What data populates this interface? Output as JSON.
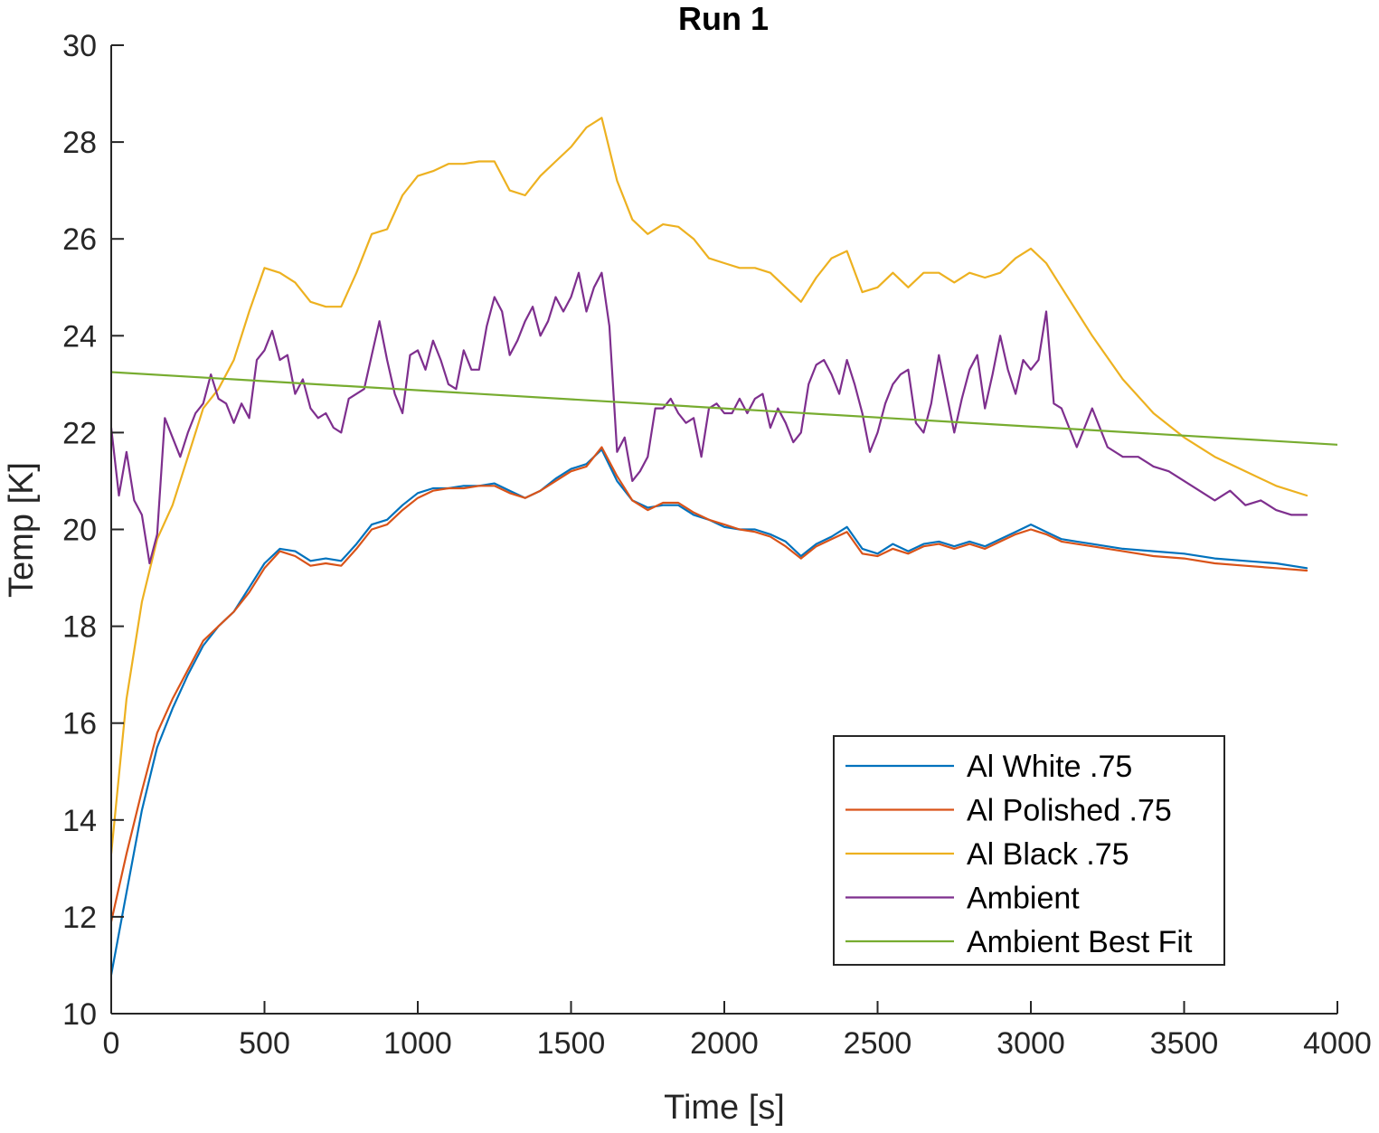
{
  "chart_data": {
    "type": "line",
    "title": "Run 1",
    "xlabel": "Time [s]",
    "ylabel": "Temp [K]",
    "xlim": [
      0,
      4000
    ],
    "ylim": [
      10,
      30
    ],
    "xticks": [
      0,
      500,
      1000,
      1500,
      2000,
      2500,
      3000,
      3500,
      4000
    ],
    "yticks": [
      10,
      12,
      14,
      16,
      18,
      20,
      22,
      24,
      26,
      28,
      30
    ],
    "grid": false,
    "legend_position": "bottom-right",
    "series": [
      {
        "name": "Al White .75",
        "color": "#0072BD",
        "x": [
          0,
          50,
          100,
          150,
          200,
          250,
          300,
          350,
          400,
          450,
          500,
          550,
          600,
          650,
          700,
          750,
          800,
          850,
          900,
          950,
          1000,
          1050,
          1100,
          1150,
          1200,
          1250,
          1300,
          1350,
          1400,
          1450,
          1500,
          1550,
          1600,
          1650,
          1700,
          1750,
          1800,
          1850,
          1900,
          1950,
          2000,
          2050,
          2100,
          2150,
          2200,
          2250,
          2300,
          2350,
          2400,
          2450,
          2500,
          2550,
          2600,
          2650,
          2700,
          2750,
          2800,
          2850,
          2900,
          2950,
          3000,
          3050,
          3100,
          3150,
          3200,
          3300,
          3400,
          3500,
          3600,
          3700,
          3800,
          3900
        ],
        "y": [
          10.8,
          12.5,
          14.2,
          15.5,
          16.3,
          17.0,
          17.6,
          18.0,
          18.3,
          18.8,
          19.3,
          19.6,
          19.55,
          19.35,
          19.4,
          19.35,
          19.7,
          20.1,
          20.2,
          20.5,
          20.75,
          20.85,
          20.85,
          20.9,
          20.9,
          20.95,
          20.8,
          20.65,
          20.8,
          21.05,
          21.25,
          21.35,
          21.65,
          21.0,
          20.6,
          20.45,
          20.5,
          20.5,
          20.3,
          20.2,
          20.05,
          20.0,
          20.0,
          19.9,
          19.75,
          19.45,
          19.7,
          19.85,
          20.05,
          19.6,
          19.5,
          19.7,
          19.55,
          19.7,
          19.75,
          19.65,
          19.75,
          19.65,
          19.8,
          19.95,
          20.1,
          19.95,
          19.8,
          19.75,
          19.7,
          19.6,
          19.55,
          19.5,
          19.4,
          19.35,
          19.3,
          19.2
        ]
      },
      {
        "name": "Al Polished .75",
        "color": "#D95319",
        "x": [
          0,
          50,
          100,
          150,
          200,
          250,
          300,
          350,
          400,
          450,
          500,
          550,
          600,
          650,
          700,
          750,
          800,
          850,
          900,
          950,
          1000,
          1050,
          1100,
          1150,
          1200,
          1250,
          1300,
          1350,
          1400,
          1450,
          1500,
          1550,
          1600,
          1650,
          1700,
          1750,
          1800,
          1850,
          1900,
          1950,
          2000,
          2050,
          2100,
          2150,
          2200,
          2250,
          2300,
          2350,
          2400,
          2450,
          2500,
          2550,
          2600,
          2650,
          2700,
          2750,
          2800,
          2850,
          2900,
          2950,
          3000,
          3050,
          3100,
          3150,
          3200,
          3300,
          3400,
          3500,
          3600,
          3700,
          3800,
          3900
        ],
        "y": [
          11.9,
          13.3,
          14.6,
          15.8,
          16.5,
          17.1,
          17.7,
          18.0,
          18.3,
          18.7,
          19.2,
          19.55,
          19.45,
          19.25,
          19.3,
          19.25,
          19.6,
          20.0,
          20.1,
          20.4,
          20.65,
          20.8,
          20.85,
          20.85,
          20.9,
          20.9,
          20.75,
          20.65,
          20.8,
          21.0,
          21.2,
          21.3,
          21.7,
          21.1,
          20.6,
          20.4,
          20.55,
          20.55,
          20.35,
          20.2,
          20.1,
          20.0,
          19.95,
          19.85,
          19.65,
          19.4,
          19.65,
          19.8,
          19.95,
          19.5,
          19.45,
          19.6,
          19.5,
          19.65,
          19.7,
          19.6,
          19.7,
          19.6,
          19.75,
          19.9,
          20.0,
          19.9,
          19.75,
          19.7,
          19.65,
          19.55,
          19.45,
          19.4,
          19.3,
          19.25,
          19.2,
          19.15
        ]
      },
      {
        "name": "Al Black .75",
        "color": "#EDB120",
        "x": [
          0,
          50,
          100,
          150,
          200,
          250,
          300,
          350,
          400,
          450,
          500,
          550,
          600,
          650,
          700,
          750,
          800,
          850,
          900,
          950,
          1000,
          1050,
          1100,
          1150,
          1200,
          1250,
          1300,
          1350,
          1400,
          1450,
          1500,
          1550,
          1600,
          1650,
          1700,
          1750,
          1800,
          1850,
          1900,
          1950,
          2000,
          2050,
          2100,
          2150,
          2200,
          2250,
          2300,
          2350,
          2400,
          2450,
          2500,
          2550,
          2600,
          2650,
          2700,
          2750,
          2800,
          2850,
          2900,
          2950,
          3000,
          3050,
          3100,
          3150,
          3200,
          3300,
          3400,
          3500,
          3600,
          3700,
          3800,
          3900
        ],
        "y": [
          13.3,
          16.5,
          18.5,
          19.8,
          20.5,
          21.5,
          22.5,
          22.9,
          23.5,
          24.5,
          25.4,
          25.3,
          25.1,
          24.7,
          24.6,
          24.6,
          25.3,
          26.1,
          26.2,
          26.9,
          27.3,
          27.4,
          27.55,
          27.55,
          27.6,
          27.6,
          27.0,
          26.9,
          27.3,
          27.6,
          27.9,
          28.3,
          28.5,
          27.2,
          26.4,
          26.1,
          26.3,
          26.25,
          26.0,
          25.6,
          25.5,
          25.4,
          25.4,
          25.3,
          25.0,
          24.7,
          25.2,
          25.6,
          25.75,
          24.9,
          25.0,
          25.3,
          25.0,
          25.3,
          25.3,
          25.1,
          25.3,
          25.2,
          25.3,
          25.6,
          25.8,
          25.5,
          25.0,
          24.5,
          24.0,
          23.1,
          22.4,
          21.9,
          21.5,
          21.2,
          20.9,
          20.7
        ]
      },
      {
        "name": "Ambient",
        "color": "#7E2F8E",
        "x": [
          0,
          25,
          50,
          75,
          100,
          125,
          150,
          175,
          200,
          225,
          250,
          275,
          300,
          325,
          350,
          375,
          400,
          425,
          450,
          475,
          500,
          525,
          550,
          575,
          600,
          625,
          650,
          675,
          700,
          725,
          750,
          775,
          800,
          825,
          850,
          875,
          900,
          925,
          950,
          975,
          1000,
          1025,
          1050,
          1075,
          1100,
          1125,
          1150,
          1175,
          1200,
          1225,
          1250,
          1275,
          1300,
          1325,
          1350,
          1375,
          1400,
          1425,
          1450,
          1475,
          1500,
          1525,
          1550,
          1575,
          1600,
          1625,
          1650,
          1675,
          1700,
          1725,
          1750,
          1775,
          1800,
          1825,
          1850,
          1875,
          1900,
          1925,
          1950,
          1975,
          2000,
          2025,
          2050,
          2075,
          2100,
          2125,
          2150,
          2175,
          2200,
          2225,
          2250,
          2275,
          2300,
          2325,
          2350,
          2375,
          2400,
          2425,
          2450,
          2475,
          2500,
          2525,
          2550,
          2575,
          2600,
          2625,
          2650,
          2675,
          2700,
          2725,
          2750,
          2775,
          2800,
          2825,
          2850,
          2875,
          2900,
          2925,
          2950,
          2975,
          3000,
          3025,
          3050,
          3075,
          3100,
          3150,
          3200,
          3250,
          3300,
          3350,
          3400,
          3450,
          3500,
          3550,
          3600,
          3650,
          3700,
          3750,
          3800,
          3850,
          3900
        ],
        "y": [
          22.1,
          20.7,
          21.6,
          20.6,
          20.3,
          19.3,
          19.9,
          22.3,
          21.9,
          21.5,
          22.0,
          22.4,
          22.6,
          23.2,
          22.7,
          22.6,
          22.2,
          22.6,
          22.3,
          23.5,
          23.7,
          24.1,
          23.5,
          23.6,
          22.8,
          23.1,
          22.5,
          22.3,
          22.4,
          22.1,
          22.0,
          22.7,
          22.8,
          22.9,
          23.6,
          24.3,
          23.5,
          22.8,
          22.4,
          23.6,
          23.7,
          23.3,
          23.9,
          23.5,
          23.0,
          22.9,
          23.7,
          23.3,
          23.3,
          24.2,
          24.8,
          24.5,
          23.6,
          23.9,
          24.3,
          24.6,
          24.0,
          24.3,
          24.8,
          24.5,
          24.8,
          25.3,
          24.5,
          25.0,
          25.3,
          24.2,
          21.6,
          21.9,
          21.0,
          21.2,
          21.5,
          22.5,
          22.5,
          22.7,
          22.4,
          22.2,
          22.3,
          21.5,
          22.5,
          22.6,
          22.4,
          22.4,
          22.7,
          22.4,
          22.7,
          22.8,
          22.1,
          22.5,
          22.2,
          21.8,
          22.0,
          23.0,
          23.4,
          23.5,
          23.2,
          22.8,
          23.5,
          23.0,
          22.4,
          21.6,
          22.0,
          22.6,
          23.0,
          23.2,
          23.3,
          22.2,
          22.0,
          22.6,
          23.6,
          22.8,
          22.0,
          22.7,
          23.3,
          23.6,
          22.5,
          23.2,
          24.0,
          23.3,
          22.8,
          23.5,
          23.3,
          23.5,
          24.5,
          22.6,
          22.5,
          21.7,
          22.5,
          21.7,
          21.5,
          21.5,
          21.3,
          21.2,
          21.0,
          20.8,
          20.6,
          20.8,
          20.5,
          20.6,
          20.4,
          20.3,
          20.3
        ]
      },
      {
        "name": "Ambient Best Fit",
        "color": "#77AC30",
        "x": [
          0,
          4000
        ],
        "y": [
          23.25,
          21.75
        ]
      }
    ]
  }
}
